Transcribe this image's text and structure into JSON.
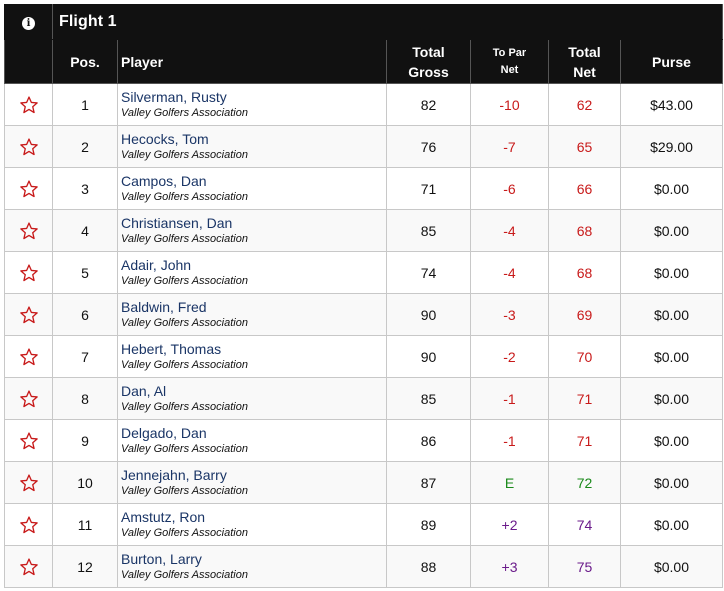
{
  "flight": {
    "title": "Flight 1",
    "info_icon": "info-icon"
  },
  "columns": {
    "pos": "Pos.",
    "player": "Player",
    "total_gross_1": "Total",
    "total_gross_2": "Gross",
    "to_par_1": "To Par",
    "to_par_2": "Net",
    "total_net_1": "Total",
    "total_net_2": "Net",
    "purse": "Purse"
  },
  "colors": {
    "under_par": "#c81a1a",
    "even_par": "#1a8a1a",
    "over_par": "#6a1a8a",
    "star": "#c81a1a"
  },
  "rows": [
    {
      "pos": "1",
      "name": "Silverman, Rusty",
      "club": "Valley Golfers Association",
      "gross": "82",
      "topar": "-10",
      "net": "62",
      "purse": "$43.00",
      "tone": "red"
    },
    {
      "pos": "2",
      "name": "Hecocks, Tom",
      "club": "Valley Golfers Association",
      "gross": "76",
      "topar": "-7",
      "net": "65",
      "purse": "$29.00",
      "tone": "red"
    },
    {
      "pos": "3",
      "name": "Campos, Dan",
      "club": "Valley Golfers Association",
      "gross": "71",
      "topar": "-6",
      "net": "66",
      "purse": "$0.00",
      "tone": "red"
    },
    {
      "pos": "4",
      "name": "Christiansen, Dan",
      "club": "Valley Golfers Association",
      "gross": "85",
      "topar": "-4",
      "net": "68",
      "purse": "$0.00",
      "tone": "red"
    },
    {
      "pos": "5",
      "name": "Adair, John",
      "club": "Valley Golfers Association",
      "gross": "74",
      "topar": "-4",
      "net": "68",
      "purse": "$0.00",
      "tone": "red"
    },
    {
      "pos": "6",
      "name": "Baldwin, Fred",
      "club": "Valley Golfers Association",
      "gross": "90",
      "topar": "-3",
      "net": "69",
      "purse": "$0.00",
      "tone": "red"
    },
    {
      "pos": "7",
      "name": "Hebert, Thomas",
      "club": "Valley Golfers Association",
      "gross": "90",
      "topar": "-2",
      "net": "70",
      "purse": "$0.00",
      "tone": "red"
    },
    {
      "pos": "8",
      "name": "Dan, Al",
      "club": "Valley Golfers Association",
      "gross": "85",
      "topar": "-1",
      "net": "71",
      "purse": "$0.00",
      "tone": "red"
    },
    {
      "pos": "9",
      "name": "Delgado, Dan",
      "club": "Valley Golfers Association",
      "gross": "86",
      "topar": "-1",
      "net": "71",
      "purse": "$0.00",
      "tone": "red"
    },
    {
      "pos": "10",
      "name": "Jennejahn, Barry",
      "club": "Valley Golfers Association",
      "gross": "87",
      "topar": "E",
      "net": "72",
      "purse": "$0.00",
      "tone": "green"
    },
    {
      "pos": "11",
      "name": "Amstutz, Ron",
      "club": "Valley Golfers Association",
      "gross": "89",
      "topar": "+2",
      "net": "74",
      "purse": "$0.00",
      "tone": "purple"
    },
    {
      "pos": "12",
      "name": "Burton, Larry",
      "club": "Valley Golfers Association",
      "gross": "88",
      "topar": "+3",
      "net": "75",
      "purse": "$0.00",
      "tone": "purple"
    }
  ]
}
